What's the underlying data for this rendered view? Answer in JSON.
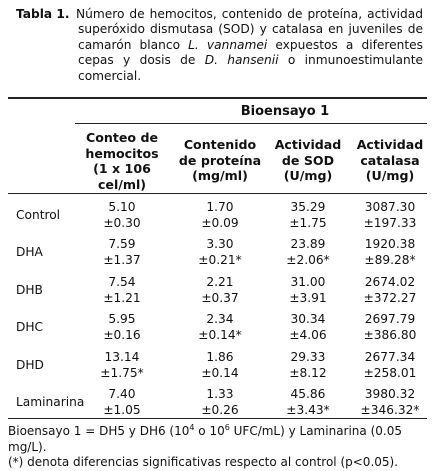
{
  "caption": {
    "label": "Tabla 1.",
    "text_1": "Número de hemocitos, contenido de proteína, actividad superóxido dismutasa (SOD) y catalasa en juveniles de camarón blanco ",
    "species_1": "L. vannamei",
    "text_2": " expuestos a diferentes cepas y dosis de ",
    "species_2": "D. hansenii",
    "text_3": " o inmunoestimulante comercial."
  },
  "table": {
    "group_header": "Bioensayo 1",
    "columns": [
      {
        "l1": "Conteo de",
        "l2": "hemocitos",
        "l3": "(1 x 106",
        "l4": "cel/ml)"
      },
      {
        "l1": "Contenido",
        "l2": "de proteína",
        "l3": "(mg/ml)"
      },
      {
        "l1": "Actividad",
        "l2": "de SOD",
        "l3": "(U/mg)"
      },
      {
        "l1": "Actividad",
        "l2": "catalasa",
        "l3": "(U/mg)"
      }
    ],
    "rows": [
      {
        "label": "Control",
        "cells": [
          [
            "5.10",
            "±0.30"
          ],
          [
            "1.70",
            "±0.09"
          ],
          [
            "35.29",
            "±1.75"
          ],
          [
            "3087.30",
            "±197.33"
          ]
        ]
      },
      {
        "label": "DHA",
        "cells": [
          [
            "7.59",
            "±1.37"
          ],
          [
            "3.30",
            "±0.21*"
          ],
          [
            "23.89",
            "±2.06*"
          ],
          [
            "1920.38",
            "±89.28*"
          ]
        ]
      },
      {
        "label": "DHB",
        "cells": [
          [
            "7.54",
            "±1.21"
          ],
          [
            "2.21",
            "±0.37"
          ],
          [
            "31.00",
            "±3.91"
          ],
          [
            "2674.02",
            "±372.27"
          ]
        ]
      },
      {
        "label": "DHC",
        "cells": [
          [
            "5.95",
            "±0.16"
          ],
          [
            "2.34",
            "±0.14*"
          ],
          [
            "30.34",
            "±4.06"
          ],
          [
            "2697.79",
            "±386.80"
          ]
        ]
      },
      {
        "label": "DHD",
        "cells": [
          [
            "13.14",
            "±1.75*"
          ],
          [
            "1.86",
            "±0.14"
          ],
          [
            "29.33",
            "±8.12"
          ],
          [
            "2677.34",
            "±258.01"
          ]
        ]
      },
      {
        "label": "Laminarina",
        "cells": [
          [
            "7.40",
            "±1.05"
          ],
          [
            "1.33",
            "±0.26"
          ],
          [
            "45.86",
            "±3.43*"
          ],
          [
            "3980.32",
            "±346.32*"
          ]
        ]
      }
    ]
  },
  "footnote": {
    "line1_a": "Bioensayo 1 = DH5 y DH6 (10",
    "exp_1": "4",
    "line1_b": " o 10",
    "exp_2": "6",
    "line1_c": " UFC/mL) y Laminarina (0.05 mg/L).",
    "line2": "(*) denota diferencias significativas respecto al control (p<0.05)."
  }
}
